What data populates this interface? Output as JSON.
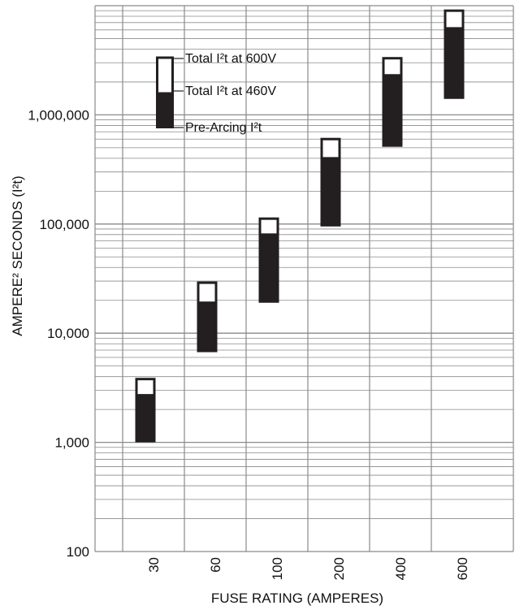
{
  "chart_data": {
    "type": "bar",
    "title": "",
    "xlabel": "FUSE RATING (AMPERES)",
    "ylabel": "AMPERE² SECONDS (I²t)",
    "y_scale": "log",
    "ylim": [
      100,
      10000000
    ],
    "y_ticks": [
      {
        "value": 100,
        "label": "100"
      },
      {
        "value": 1000,
        "label": "1,000"
      },
      {
        "value": 10000,
        "label": "10,000"
      },
      {
        "value": 100000,
        "label": "100,000"
      },
      {
        "value": 1000000,
        "label": "1,000,000"
      }
    ],
    "grid": true,
    "categories": [
      "30",
      "60",
      "100",
      "200",
      "400",
      "600"
    ],
    "series": [
      {
        "name": "Pre-Arcing I²t",
        "values": [
          1000,
          6700,
          19000,
          95000,
          510000,
          1400000
        ]
      },
      {
        "name": "Total I²t at 460V",
        "values": [
          2700,
          19000,
          80000,
          400000,
          2300000,
          6200000
        ]
      },
      {
        "name": "Total I²t at 600V",
        "values": [
          3800,
          29000,
          112000,
          600000,
          3300000,
          9000000
        ]
      }
    ],
    "legend_position": "top-left",
    "colors": {
      "fill": "#231f20",
      "background": "#ffffff",
      "grid": "#8a8a8a"
    }
  }
}
